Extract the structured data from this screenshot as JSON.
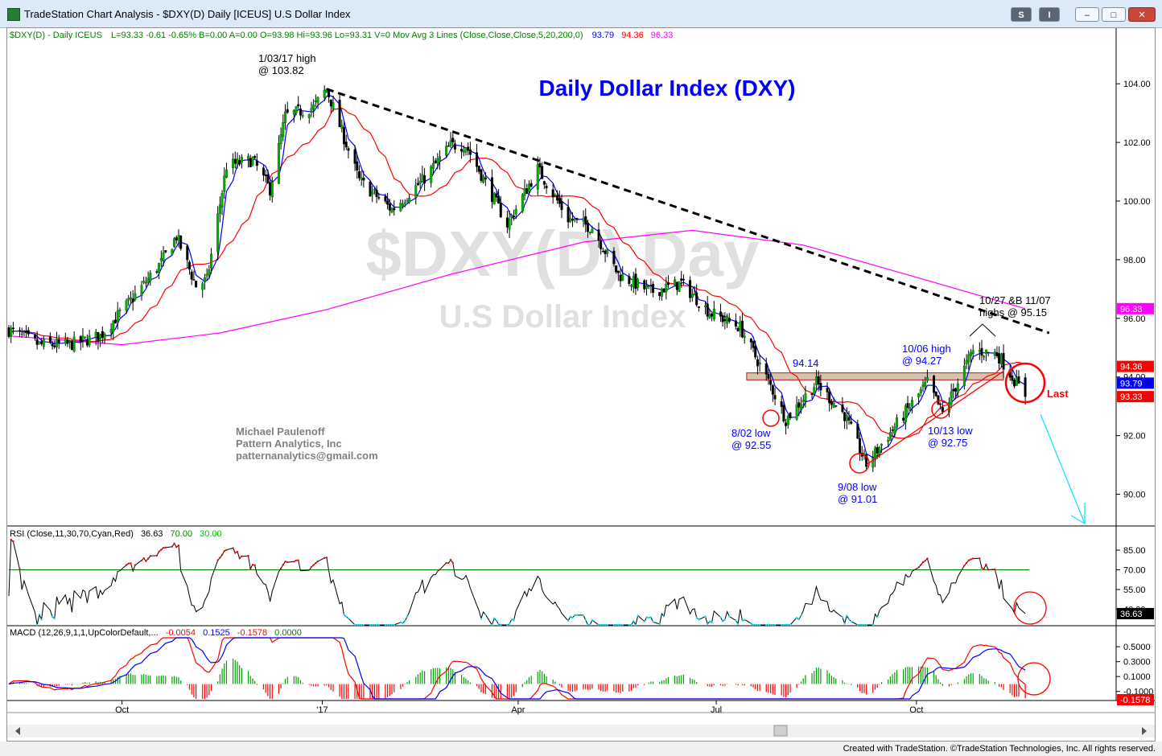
{
  "window": {
    "title": "TradeStation Chart Analysis - $DXY(D) Daily [ICEUS] U.S Dollar Index",
    "btn_s": "S",
    "btn_i": "I",
    "btn_min": "–",
    "btn_max": "□",
    "btn_close": "✕"
  },
  "header": {
    "symbol_info": "$DXY(D) - Daily  ICEUS",
    "quote": "L=93.33  -0.61  -0.65%  B=0.00  A=0.00  O=93.98  Hi=93.96  Lo=93.31  V=0  Mov Avg 3 Lines (Close,Close,Close,5,20,200,0)",
    "ma5_val": "93.79",
    "ma20_val": "94.36",
    "ma200_val": "96.33"
  },
  "watermark": {
    "line1": "$DXY(D) Day",
    "line2": "U.S Dollar Index"
  },
  "footer": {
    "copyright": "Created with TradeStation. ©TradeStation Technologies, Inc. All rights reserved."
  },
  "chart_data": [
    {
      "type": "candlestick",
      "title": "Daily Dollar Index (DXY)",
      "ylim": [
        89.0,
        104.8
      ],
      "y_ticks": [
        "104.00",
        "102.00",
        "100.00",
        "98.00",
        "96.00",
        "94.00",
        "92.00",
        "90.00"
      ],
      "y_tick_values": [
        104,
        102,
        100,
        98,
        96,
        94,
        92,
        90
      ],
      "x_tick_labels": [
        "Oct",
        "'17",
        "Apr",
        "Jul",
        "Oct"
      ],
      "x_tick_dates": [
        "2016-10-01",
        "2017-01-01",
        "2017-04-01",
        "2017-07-01",
        "2017-10-01"
      ],
      "x_range": [
        "2016-08-10",
        "2017-12-31"
      ],
      "grid": false,
      "last_bar": {
        "open": 93.98,
        "high": 93.96,
        "low": 93.31,
        "close": 93.33
      },
      "axis_value_tags": [
        {
          "text": "96.33",
          "value": 96.33,
          "color": "#ff00ff"
        },
        {
          "text": "94.36",
          "value": 94.36,
          "color": "#ff0000"
        },
        {
          "text": "93.79",
          "value": 93.79,
          "color": "#0000ff"
        },
        {
          "text": "93.33",
          "value": 93.33,
          "color": "#ff0000"
        }
      ],
      "series_closes": [
        {
          "date": "2016-08-10",
          "close": 95.6
        },
        {
          "date": "2016-08-24",
          "close": 95.1
        },
        {
          "date": "2016-09-07",
          "close": 95.1
        },
        {
          "date": "2016-09-21",
          "close": 95.4
        },
        {
          "date": "2016-10-05",
          "close": 96.6
        },
        {
          "date": "2016-10-19",
          "close": 97.9
        },
        {
          "date": "2016-10-26",
          "close": 98.8
        },
        {
          "date": "2016-11-04",
          "close": 97.1
        },
        {
          "date": "2016-11-09",
          "close": 97.3
        },
        {
          "date": "2016-11-18",
          "close": 101.2
        },
        {
          "date": "2016-11-30",
          "close": 101.4
        },
        {
          "date": "2016-12-08",
          "close": 100.4
        },
        {
          "date": "2016-12-15",
          "close": 102.9
        },
        {
          "date": "2016-12-28",
          "close": 103.2
        },
        {
          "date": "2017-01-03",
          "close": 103.82
        },
        {
          "date": "2017-01-18",
          "close": 100.7
        },
        {
          "date": "2017-02-02",
          "close": 99.7
        },
        {
          "date": "2017-02-16",
          "close": 100.7
        },
        {
          "date": "2017-03-01",
          "close": 101.9
        },
        {
          "date": "2017-03-08",
          "close": 101.9
        },
        {
          "date": "2017-03-27",
          "close": 99.2
        },
        {
          "date": "2017-04-10",
          "close": 101.1
        },
        {
          "date": "2017-04-24",
          "close": 99.4
        },
        {
          "date": "2017-05-05",
          "close": 99.1
        },
        {
          "date": "2017-05-17",
          "close": 97.5
        },
        {
          "date": "2017-06-01",
          "close": 96.9
        },
        {
          "date": "2017-06-15",
          "close": 97.2
        },
        {
          "date": "2017-06-28",
          "close": 96.2
        },
        {
          "date": "2017-07-12",
          "close": 95.7
        },
        {
          "date": "2017-07-26",
          "close": 93.7
        },
        {
          "date": "2017-08-02",
          "close": 92.55
        },
        {
          "date": "2017-08-16",
          "close": 93.8
        },
        {
          "date": "2017-08-29",
          "close": 92.7
        },
        {
          "date": "2017-09-08",
          "close": 91.01
        },
        {
          "date": "2017-09-20",
          "close": 92.2
        },
        {
          "date": "2017-10-06",
          "close": 93.8
        },
        {
          "date": "2017-10-13",
          "close": 92.75
        },
        {
          "date": "2017-10-27",
          "close": 94.9
        },
        {
          "date": "2017-11-07",
          "close": 94.8
        },
        {
          "date": "2017-11-15",
          "close": 93.9
        },
        {
          "date": "2017-11-20",
          "close": 93.33
        }
      ],
      "ma200": [
        {
          "date": "2016-08-10",
          "value": 95.4
        },
        {
          "date": "2016-10-01",
          "value": 95.1
        },
        {
          "date": "2016-11-15",
          "value": 95.5
        },
        {
          "date": "2017-01-03",
          "value": 96.3
        },
        {
          "date": "2017-03-01",
          "value": 97.5
        },
        {
          "date": "2017-05-01",
          "value": 98.6
        },
        {
          "date": "2017-06-20",
          "value": 99.0
        },
        {
          "date": "2017-08-10",
          "value": 98.5
        },
        {
          "date": "2017-10-01",
          "value": 97.4
        },
        {
          "date": "2017-11-20",
          "value": 96.33
        }
      ],
      "annotations": [
        {
          "lines": [
            "1/03/17 high",
            "@ 103.82"
          ],
          "color": "#000000"
        },
        {
          "lines": [
            "94.14"
          ],
          "color": "#0000ff"
        },
        {
          "lines": [
            "10/06 high",
            "@ 94.27"
          ],
          "color": "#0000ff"
        },
        {
          "lines": [
            "10/27 &B 11/07",
            "highs @ 95.15"
          ],
          "color": "#000000"
        },
        {
          "lines": [
            "8/02 low",
            "@ 92.55"
          ],
          "color": "#0000ff"
        },
        {
          "lines": [
            "9/08 low",
            "@ 91.01"
          ],
          "color": "#0000ff"
        },
        {
          "lines": [
            "10/13 low",
            "@ 92.75"
          ],
          "color": "#0000ff"
        },
        {
          "lines": [
            "Last"
          ],
          "color": "#ff0000"
        },
        {
          "lines": [
            "Michael Paulenoff",
            "Pattern Analytics, Inc",
            "patternanalytics@gmail.com"
          ],
          "color": "#808080"
        }
      ],
      "resistance_zone": [
        93.9,
        94.14
      ],
      "downtrend_line": {
        "from": {
          "date": "2017-01-03",
          "value": 103.82
        },
        "to": {
          "date": "2017-12-01",
          "value": 95.5
        }
      },
      "uptrend_line": {
        "from": {
          "date": "2017-09-08",
          "value": 91.01
        },
        "to": {
          "date": "2017-11-10",
          "value": 94.2
        }
      }
    },
    {
      "type": "line",
      "title": "RSI (Close,11,30,70,Cyan,Red)",
      "values_text": [
        "36.63",
        "70.00",
        "30.00"
      ],
      "y_ticks": [
        "85.00",
        "70.00",
        "55.00",
        "40.00"
      ],
      "y_tick_values": [
        85,
        70,
        55,
        40
      ],
      "ylim": [
        28,
        93
      ],
      "overbought": 70,
      "oversold": 30,
      "last": 36.63
    },
    {
      "type": "bar",
      "title": "MACD (12,26,9,1,1,UpColorDefault,...",
      "values_text": [
        "-0.0054",
        "0.1525",
        "-0.1578",
        "0.0000"
      ],
      "y_ticks": [
        "0.5000",
        "0.3000",
        "0.1000",
        "-0.1000"
      ],
      "y_tick_values": [
        0.5,
        0.3,
        0.1,
        -0.1
      ],
      "ylim": [
        -0.2,
        0.62
      ],
      "last_tag": "-0.1578"
    }
  ]
}
